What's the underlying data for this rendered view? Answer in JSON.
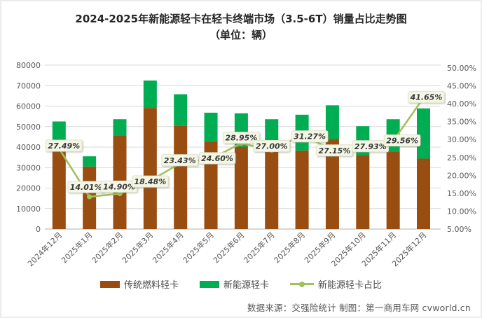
{
  "title": {
    "line1": "2024-2025年新能源轻卡在轻卡终端市场（3.5-6T）销量占比走势图",
    "line2": "（单位：辆）"
  },
  "source": "数据来源：交强险统计 制图：第一商用车网 cvworld.cn",
  "colors": {
    "ice_bar": "#9A4D10",
    "nev_bar": "#00AD52",
    "share_line": "#A3C05E",
    "gridline": "#D9D9D9",
    "axis_line": "#BFBFBF",
    "axis_text": "#595959",
    "label_box_bg": "#F4F7E6",
    "label_box_border": "#DFE5CB",
    "label_text": "#3A3A3A"
  },
  "chart_data": {
    "type": "bar",
    "subtype": "stacked-bars-with-line",
    "title": "2024-2025年新能源轻卡在轻卡终端市场（3.5-6T）销量占比走势图",
    "unit": "（单位：辆）",
    "categories": [
      "2024年12月",
      "2025年1月",
      "2025年2月",
      "2025年3月",
      "2025年4月",
      "2025年5月",
      "2025年6月",
      "2025年7月",
      "2025年8月",
      "2025年9月",
      "2025年10月",
      "2025年11月",
      "2025年12月"
    ],
    "series": [
      {
        "name": "传统燃料轻卡",
        "type": "bar",
        "color": "#9A4D10",
        "values": [
          38068,
          30526,
          45614,
          59102,
          50383,
          42827,
          40143,
          39128,
          38351,
          44001,
          36179,
          37756,
          34368
        ]
      },
      {
        "name": "新能源轻卡",
        "type": "bar",
        "color": "#00AD52",
        "values": [
          14432,
          4974,
          7986,
          13398,
          15417,
          13973,
          16357,
          14472,
          17449,
          16399,
          14021,
          15844,
          24532
        ]
      },
      {
        "name": "新能源轻卡占比",
        "type": "line",
        "axis": "right",
        "color": "#A3C05E",
        "values": [
          27.49,
          14.01,
          14.9,
          18.48,
          23.43,
          24.6,
          28.95,
          27.0,
          31.27,
          27.15,
          27.93,
          29.56,
          41.65
        ],
        "labels": [
          "27.49%",
          "14.01%",
          "14.90%",
          "18.48%",
          "23.43%",
          "24.60%",
          "28.95%",
          "27.00%",
          "31.27%",
          "27.15%",
          "27.93%",
          "29.56%",
          "41.65%"
        ]
      }
    ],
    "y_left": {
      "min": 0,
      "max": 80000,
      "step": 10000,
      "ticks": [
        "0",
        "10000",
        "20000",
        "30000",
        "40000",
        "50000",
        "60000",
        "70000",
        "80000"
      ]
    },
    "y_right": {
      "min": 5,
      "max": 50,
      "step": 5,
      "ticks": [
        "5.00%",
        "10.00%",
        "15.00%",
        "20.00%",
        "25.00%",
        "30.00%",
        "35.00%",
        "40.00%",
        "45.00%",
        "50.00%"
      ]
    },
    "grid": true,
    "legend_position": "bottom"
  }
}
